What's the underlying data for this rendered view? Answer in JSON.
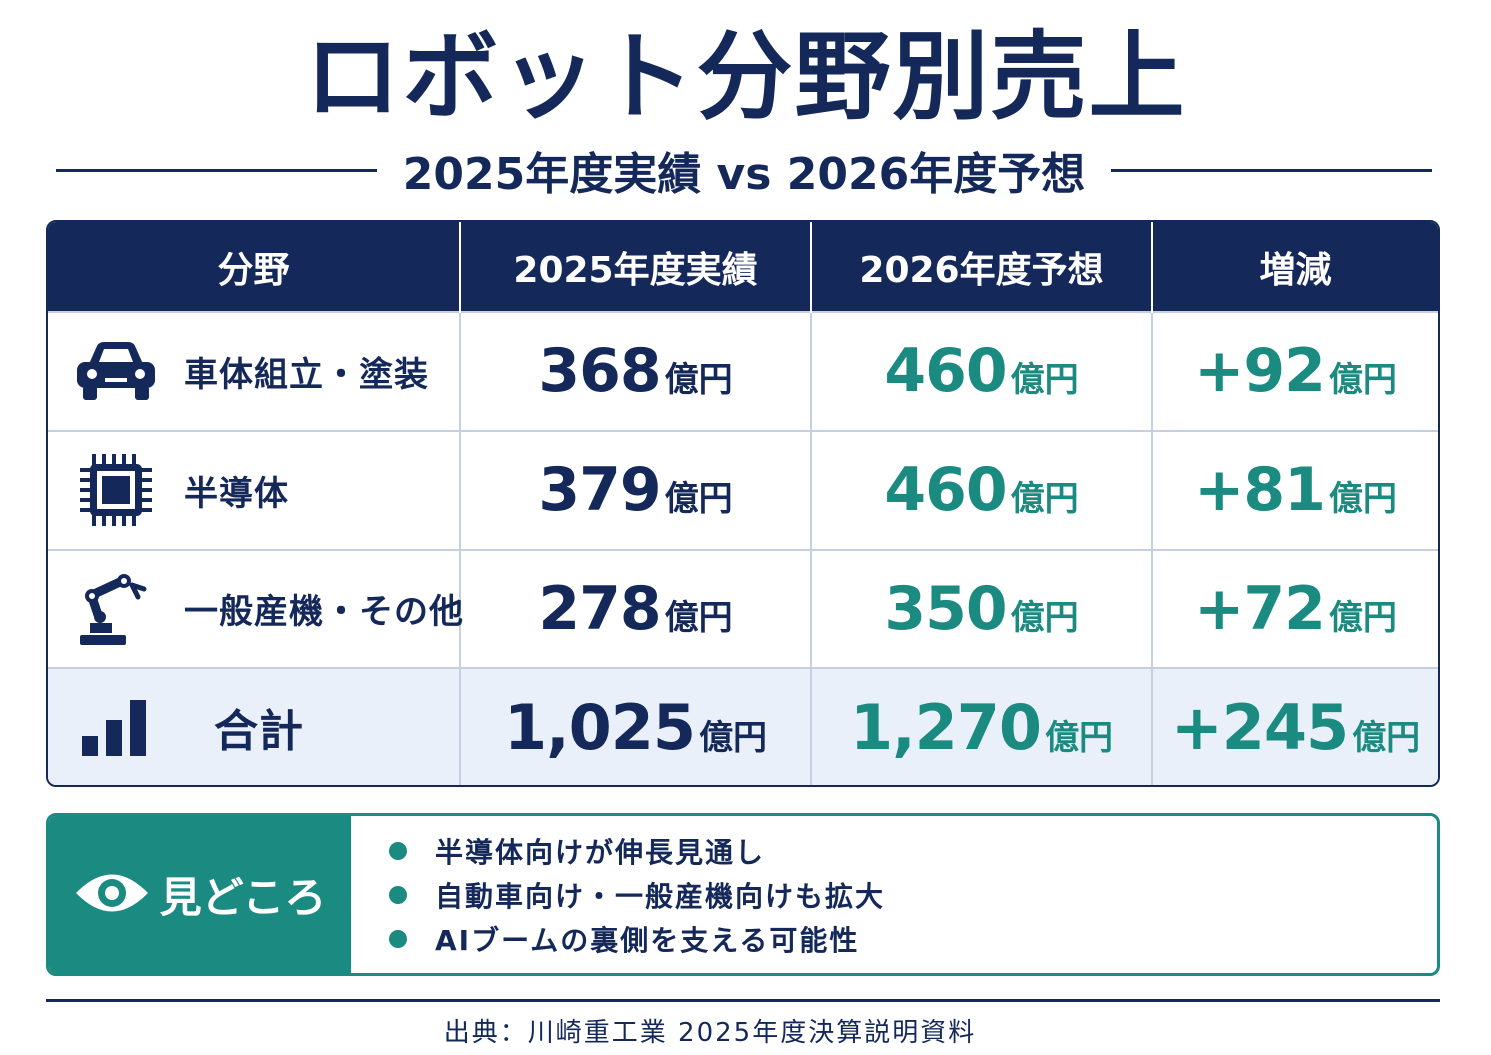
{
  "title": "ロボット分野別売上",
  "subtitle": "2025年度実績 vs 2026年度予想",
  "table": {
    "headers": [
      "分野",
      "2025年度実績",
      "2026年度予想",
      "増減"
    ],
    "unit": "億円",
    "rows": [
      {
        "icon": "car-icon",
        "category": "車体組立・塗装",
        "fy2025": "368",
        "fy2026": "460",
        "change": "+92"
      },
      {
        "icon": "chip-icon",
        "category": "半導体",
        "fy2025": "379",
        "fy2026": "460",
        "change": "+81"
      },
      {
        "icon": "robot-arm-icon",
        "category": "一般産機・その他",
        "fy2025": "278",
        "fy2026": "350",
        "change": "+72"
      }
    ],
    "total": {
      "icon": "bar-chart-icon",
      "category": "合計",
      "fy2025": "1,025",
      "fy2026": "1,270",
      "change": "+245"
    }
  },
  "highlights": {
    "icon": "eye-icon",
    "title": "見どころ",
    "items": [
      "半導体向けが伸長見通し",
      "自動車向け・一般産機向けも拡大",
      "AIブームの裏側を支える可能性"
    ]
  },
  "source": "出典：川崎重工業 2025年度決算説明資料",
  "colors": {
    "navy": "#14285a",
    "teal": "#1b8a80",
    "total_row_bg": "#eaf0f9"
  }
}
